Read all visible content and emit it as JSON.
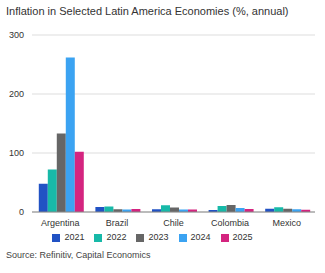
{
  "chart_data": {
    "type": "bar",
    "title": "Inflation in Selected Latin America Economies (%, annual)",
    "source": "Source: Refinitiv, Capital Economics",
    "categories": [
      "Argentina",
      "Brazil",
      "Chile",
      "Colombia",
      "Mexico"
    ],
    "series": [
      {
        "name": "2021",
        "color": "#2152c4",
        "values": [
          48,
          8.3,
          4.5,
          3.5,
          5.7
        ]
      },
      {
        "name": "2022",
        "color": "#17b9a8",
        "values": [
          72,
          9.3,
          11.6,
          10.2,
          7.9
        ]
      },
      {
        "name": "2023",
        "color": "#666666",
        "values": [
          133,
          4.6,
          7.6,
          11.7,
          5.5
        ]
      },
      {
        "name": "2024",
        "color": "#3ba3f2",
        "values": [
          262,
          4.4,
          4.3,
          6.6,
          4.7
        ]
      },
      {
        "name": "2025",
        "color": "#d4247f",
        "values": [
          102,
          5.0,
          4.3,
          5.0,
          3.8
        ]
      }
    ],
    "ylim": [
      0,
      300
    ],
    "yticks": [
      0,
      100,
      200,
      300
    ],
    "grid": true,
    "legend": "bottom"
  }
}
